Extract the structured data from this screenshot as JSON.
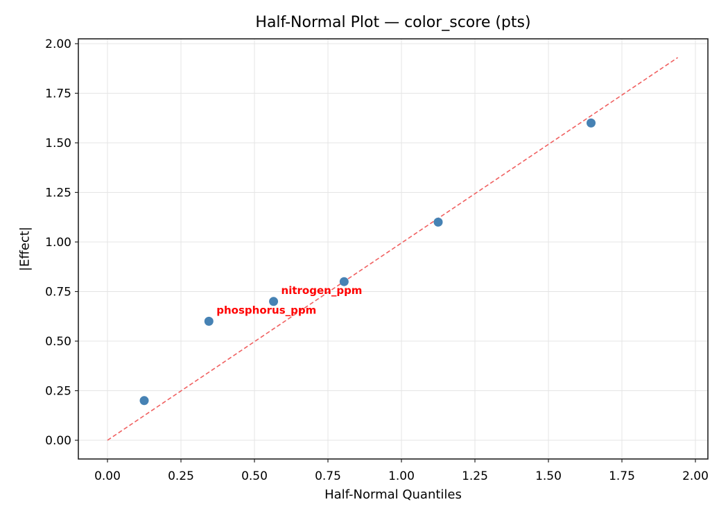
{
  "chart_data": {
    "type": "scatter",
    "title": "Half-Normal Plot — color_score (pts)",
    "xlabel": "Half-Normal Quantiles",
    "ylabel": "|Effect|",
    "xlim": [
      -0.1,
      2.04
    ],
    "ylim": [
      -0.095,
      2.03
    ],
    "grid": true,
    "x_ticks": [
      0.0,
      0.25,
      0.5,
      0.75,
      1.0,
      1.25,
      1.5,
      1.75,
      2.0
    ],
    "x_tick_labels": [
      "0.00",
      "0.25",
      "0.50",
      "0.75",
      "1.00",
      "1.25",
      "1.50",
      "1.75",
      "2.00"
    ],
    "y_ticks": [
      0.0,
      0.25,
      0.5,
      0.75,
      1.0,
      1.25,
      1.5,
      1.75,
      2.0
    ],
    "y_tick_labels": [
      "0.00",
      "0.25",
      "0.50",
      "0.75",
      "1.00",
      "1.25",
      "1.50",
      "1.75",
      "2.00"
    ],
    "series": [
      {
        "name": "effects",
        "color": "#4682b4",
        "points": [
          {
            "x": 0.125,
            "y": 0.2
          },
          {
            "x": 0.345,
            "y": 0.6
          },
          {
            "x": 0.565,
            "y": 0.7
          },
          {
            "x": 0.805,
            "y": 0.8
          },
          {
            "x": 1.125,
            "y": 1.1
          },
          {
            "x": 1.645,
            "y": 1.6
          }
        ]
      }
    ],
    "reference_line": {
      "style": "dashed",
      "color": "#f06060",
      "x": [
        0.0,
        1.94
      ],
      "y": [
        0.0,
        1.93
      ]
    },
    "annotations": [
      {
        "text": "phosphorus_ppm",
        "x": 0.345,
        "y": 0.6,
        "color": "#ff0000"
      },
      {
        "text": "nitrogen_ppm",
        "x": 0.565,
        "y": 0.7,
        "color": "#ff0000"
      }
    ]
  }
}
